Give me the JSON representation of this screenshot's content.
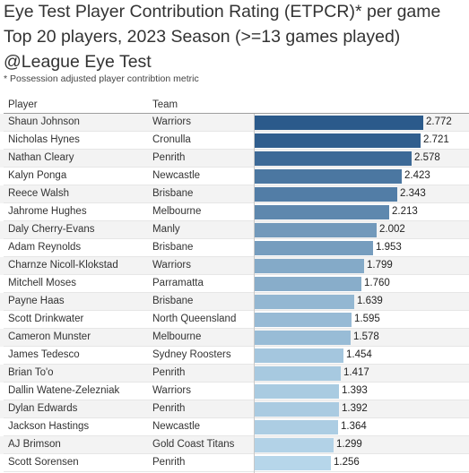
{
  "title": {
    "line1": "Eye Test Player Contribution Rating (ETPCR)* per game",
    "line2": "Top 20 players, 2023 Season (>=13 games played)",
    "line3": "@League Eye Test"
  },
  "subtitle": "* Possession adjusted player contribtion metric",
  "columns": {
    "player": "Player",
    "team": "Team"
  },
  "colors": {
    "bar_high": "#2b5a8b",
    "bar_low": "#b6d6ea"
  },
  "chart_data": {
    "type": "bar",
    "orientation": "horizontal",
    "categories": [
      "Shaun Johnson",
      "Nicholas Hynes",
      "Nathan Cleary",
      "Kalyn Ponga",
      "Reece Walsh",
      "Jahrome Hughes",
      "Daly Cherry-Evans",
      "Adam Reynolds",
      "Charnze Nicoll-Klokstad",
      "Mitchell Moses",
      "Payne Haas",
      "Scott Drinkwater",
      "Cameron Munster",
      "James Tedesco",
      "Brian To'o",
      "Dallin Watene-Zelezniak",
      "Dylan Edwards",
      "Jackson Hastings",
      "AJ Brimson",
      "Scott Sorensen"
    ],
    "teams": [
      "Warriors",
      "Cronulla",
      "Penrith",
      "Newcastle",
      "Brisbane",
      "Melbourne",
      "Manly",
      "Brisbane",
      "Warriors",
      "Parramatta",
      "Brisbane",
      "North Queensland",
      "Melbourne",
      "Sydney Roosters",
      "Penrith",
      "Warriors",
      "Penrith",
      "Newcastle",
      "Gold Coast Titans",
      "Penrith"
    ],
    "values": [
      2.772,
      2.721,
      2.578,
      2.423,
      2.343,
      2.213,
      2.002,
      1.953,
      1.799,
      1.76,
      1.639,
      1.595,
      1.578,
      1.454,
      1.417,
      1.393,
      1.392,
      1.364,
      1.299,
      1.256
    ],
    "labels": [
      "2.772",
      "2.721",
      "2.578",
      "2.423",
      "2.343",
      "2.213",
      "2.002",
      "1.953",
      "1.799",
      "1.760",
      "1.639",
      "1.595",
      "1.578",
      "1.454",
      "1.417",
      "1.393",
      "1.392",
      "1.364",
      "1.299",
      "1.256"
    ],
    "xlim": [
      0,
      3.2
    ]
  }
}
